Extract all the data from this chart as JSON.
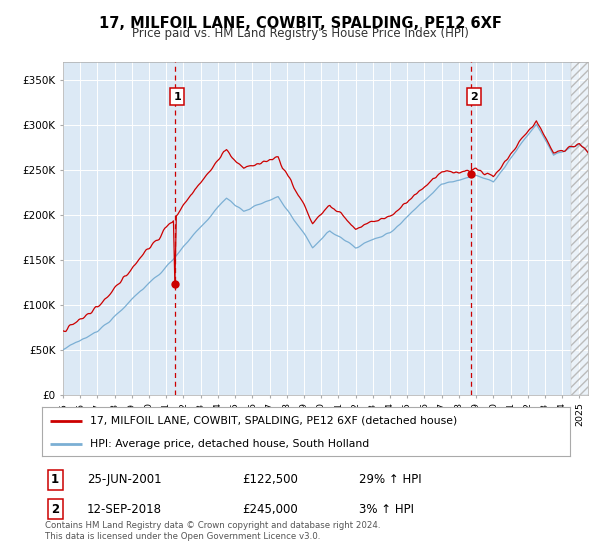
{
  "title": "17, MILFOIL LANE, COWBIT, SPALDING, PE12 6XF",
  "subtitle": "Price paid vs. HM Land Registry's House Price Index (HPI)",
  "legend_line1": "17, MILFOIL LANE, COWBIT, SPALDING, PE12 6XF (detached house)",
  "legend_line2": "HPI: Average price, detached house, South Holland",
  "sale1_date": "25-JUN-2001",
  "sale1_price": 122500,
  "sale1_hpi": "29% ↑ HPI",
  "sale1_label": "1",
  "sale1_year": 2001.49,
  "sale2_date": "12-SEP-2018",
  "sale2_price": 245000,
  "sale2_hpi": "3% ↑ HPI",
  "sale2_label": "2",
  "sale2_year": 2018.7,
  "copyright": "Contains HM Land Registry data © Crown copyright and database right 2024.\nThis data is licensed under the Open Government Licence v3.0.",
  "hpi_color": "#7bafd4",
  "price_color": "#cc0000",
  "bg_color": "#dce9f5",
  "grid_color": "#ffffff",
  "dashed_color": "#cc0000",
  "ylim": [
    0,
    370000
  ],
  "xlim_start": 1995.0,
  "xlim_end": 2025.5
}
